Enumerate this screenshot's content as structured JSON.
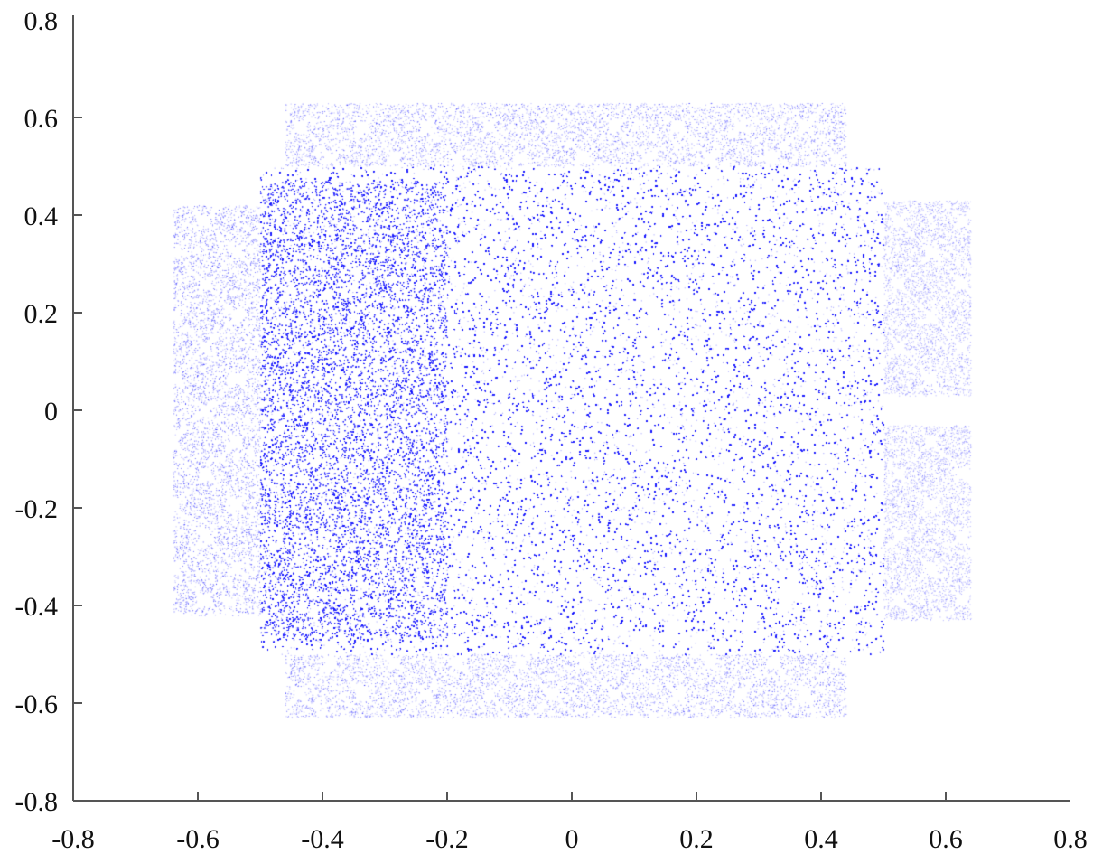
{
  "chart_data": {
    "type": "scatter",
    "title": "",
    "xlabel": "",
    "ylabel": "",
    "xlim": [
      -0.8,
      0.8
    ],
    "ylim": [
      -0.8,
      0.8
    ],
    "x_ticks": [
      "-0.8",
      "-0.6",
      "-0.4",
      "-0.2",
      "0",
      "0.2",
      "0.4",
      "0.6",
      "0.8"
    ],
    "y_ticks": [
      "-0.8",
      "-0.6",
      "-0.4",
      "-0.2",
      "0",
      "0.2",
      "0.4",
      "0.6",
      "0.8"
    ],
    "grid": false,
    "legend": "none",
    "marker_color": "#1a1aff",
    "point_regions": [
      {
        "name": "central-square",
        "x": [
          -0.5,
          0.5
        ],
        "y": [
          -0.5,
          0.5
        ],
        "density": 1.0
      },
      {
        "name": "left-dense-band",
        "x": [
          -0.5,
          -0.2
        ],
        "y": [
          -0.47,
          0.47
        ],
        "density": 0.8
      },
      {
        "name": "left-fans",
        "x": [
          -0.64,
          -0.5
        ],
        "y": [
          -0.42,
          0.42
        ],
        "density": 0.35
      },
      {
        "name": "top-fans",
        "x": [
          -0.46,
          0.44
        ],
        "y": [
          0.5,
          0.63
        ],
        "density": 0.3
      },
      {
        "name": "bottom-fans",
        "x": [
          -0.46,
          0.44
        ],
        "y": [
          -0.63,
          -0.5
        ],
        "density": 0.3
      },
      {
        "name": "right-fans-upper",
        "x": [
          0.5,
          0.64
        ],
        "y": [
          0.03,
          0.43
        ],
        "density": 0.3
      },
      {
        "name": "right-fans-lower",
        "x": [
          0.5,
          0.64
        ],
        "y": [
          -0.43,
          -0.03
        ],
        "density": 0.3
      }
    ]
  }
}
